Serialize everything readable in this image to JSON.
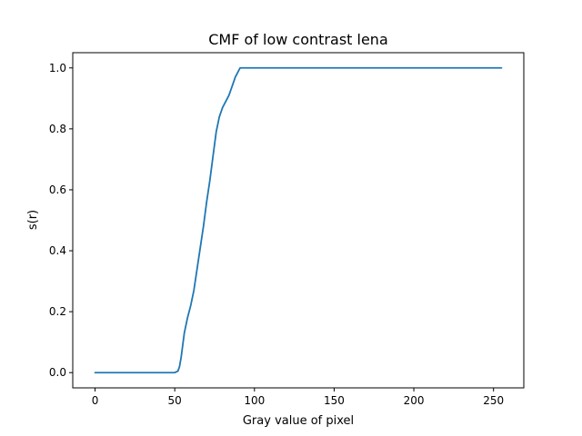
{
  "chart_data": {
    "type": "line",
    "title": "CMF of low contrast lena",
    "xlabel": "Gray value of pixel",
    "ylabel": "s(r)",
    "xlim": [
      -14,
      269
    ],
    "ylim": [
      -0.05,
      1.05
    ],
    "x_ticks": [
      {
        "value": 0,
        "label": "0"
      },
      {
        "value": 50,
        "label": "50"
      },
      {
        "value": 100,
        "label": "100"
      },
      {
        "value": 150,
        "label": "150"
      },
      {
        "value": 200,
        "label": "200"
      },
      {
        "value": 250,
        "label": "250"
      }
    ],
    "y_ticks": [
      {
        "value": 0.0,
        "label": "0.0"
      },
      {
        "value": 0.2,
        "label": "0.2"
      },
      {
        "value": 0.4,
        "label": "0.4"
      },
      {
        "value": 0.6,
        "label": "0.6"
      },
      {
        "value": 0.8,
        "label": "0.8"
      },
      {
        "value": 1.0,
        "label": "1.0"
      }
    ],
    "grid": false,
    "series": [
      {
        "color": "#1f77b4",
        "x": [
          0,
          50,
          52,
          53,
          54,
          55,
          56,
          58,
          60,
          62,
          64,
          66,
          68,
          70,
          72,
          74,
          76,
          78,
          80,
          82,
          84,
          86,
          88,
          90,
          91,
          92,
          93,
          95,
          100,
          150,
          200,
          255
        ],
        "y": [
          0,
          0,
          0.005,
          0.02,
          0.05,
          0.09,
          0.13,
          0.18,
          0.22,
          0.27,
          0.34,
          0.41,
          0.48,
          0.56,
          0.63,
          0.71,
          0.79,
          0.84,
          0.87,
          0.89,
          0.91,
          0.94,
          0.97,
          0.99,
          1.0,
          1.0,
          1.0,
          1.0,
          1.0,
          1.0,
          1.0,
          1.0
        ]
      }
    ]
  }
}
